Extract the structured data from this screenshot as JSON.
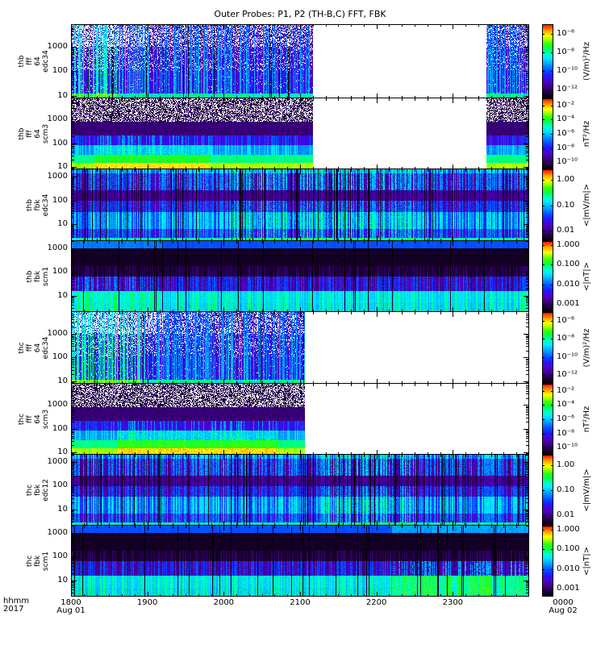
{
  "figure": {
    "title": "Outer Probes: P1, P2 (TH-B,C) FFT, FBK",
    "footer": {
      "time_format": "hhmm",
      "year": "2017"
    },
    "background": "#ffffff",
    "frame_color": "#000000"
  },
  "chart_data": {
    "type": "heatmap",
    "subtype": "multi-panel-time-frequency-spectrogram",
    "mission_note": "THEMIS outer probes P1 (TH-B) and P2 (TH-C), on-board FFT and filter-bank (FBK) spectra",
    "time_axis": {
      "start_label": "1800",
      "start_date_label": "Aug 01",
      "end_label": "0000",
      "end_date_label": "Aug 02",
      "year": "2017",
      "hour_tick_labels": [
        "1800",
        "1900",
        "2000",
        "2100",
        "2200",
        "2300",
        "0000"
      ],
      "minor_ticks_per_hour": 6
    },
    "colormap_stops": [
      [
        0.0,
        "#000000"
      ],
      [
        0.06,
        "#1b0033"
      ],
      [
        0.14,
        "#3d0085"
      ],
      [
        0.22,
        "#5000c8"
      ],
      [
        0.3,
        "#2414ff"
      ],
      [
        0.38,
        "#0055ff"
      ],
      [
        0.46,
        "#00a0ff"
      ],
      [
        0.54,
        "#00e6ff"
      ],
      [
        0.6,
        "#00ffcc"
      ],
      [
        0.67,
        "#00ff55"
      ],
      [
        0.74,
        "#33ff00"
      ],
      [
        0.8,
        "#aaff00"
      ],
      [
        0.85,
        "#ffff00"
      ],
      [
        0.91,
        "#ffaa00"
      ],
      [
        0.96,
        "#ff5500"
      ],
      [
        1.0,
        "#ff0000"
      ]
    ],
    "no_data_color": "#ffffff",
    "panels": [
      {
        "id": "thb-fff-64-edc34",
        "label_lines": [
          "thb",
          "fff",
          "64",
          "edc34"
        ],
        "y_axis": {
          "log": true,
          "min": 8,
          "max": 8000,
          "tick_labels": [
            "1000",
            "100",
            "10"
          ],
          "tick_values": [
            1000,
            100,
            10
          ]
        },
        "colorbar": {
          "unit": "(V/m)²/Hz",
          "log_range": [
            -5,
            -13
          ],
          "tick_labels": [
            "10⁻⁶",
            "10⁻⁸",
            "10⁻¹⁰",
            "10⁻¹²"
          ],
          "tick_log_values": [
            -6,
            -8,
            -10,
            -12
          ]
        },
        "coverage": [
          [
            0.0,
            0.527
          ],
          [
            0.906,
            1.0
          ]
        ],
        "texture": {
          "seed": 11,
          "streak_prob": 0.42,
          "gap_prob": 0.03,
          "bands": [
            [
              0.0,
              0.3,
              0.03,
              0.46,
              "streak",
              0.55
            ],
            [
              0.3,
              0.62,
              0.07,
              0.5,
              "streak",
              0.22
            ],
            [
              0.62,
              0.94,
              0.12,
              0.52,
              "streak",
              0.04
            ],
            [
              0.94,
              1.0,
              0.45,
              0.7,
              "streak",
              0.0
            ]
          ],
          "white_zones": [
            [
              0.0,
              0.17,
              1.5
            ]
          ],
          "hot_zones": [
            [
              0.0,
              0.1,
              0.15
            ]
          ]
        }
      },
      {
        "id": "thb-fff-64-scm3",
        "label_lines": [
          "thb",
          "fff",
          "64",
          "scm3"
        ],
        "y_axis": {
          "log": true,
          "min": 8,
          "max": 8000,
          "tick_labels": [
            "1000",
            "100",
            "10"
          ],
          "tick_values": [
            1000,
            100,
            10
          ]
        },
        "colorbar": {
          "unit": "nT²/Hz",
          "log_range": [
            -1,
            -11
          ],
          "tick_labels": [
            "10⁻²",
            "10⁻⁴",
            "10⁻⁶",
            "10⁻⁸",
            "10⁻¹⁰"
          ],
          "tick_log_values": [
            -2,
            -4,
            -6,
            -8,
            -10
          ]
        },
        "coverage": [
          [
            0.0,
            0.527
          ],
          [
            0.906,
            1.0
          ]
        ],
        "texture": {
          "seed": 22,
          "streak_prob": 0.35,
          "gap_prob": 0.0,
          "bands": [
            [
              0.0,
              0.33,
              0.01,
              0.15,
              "speckle",
              0.4
            ],
            [
              0.33,
              0.52,
              0.06,
              0.16,
              "noise",
              0.0
            ],
            [
              0.52,
              0.66,
              0.18,
              0.4,
              "streak",
              0.0
            ],
            [
              0.66,
              0.79,
              0.38,
              0.56,
              "streak",
              0.0
            ],
            [
              0.79,
              0.91,
              0.55,
              0.68,
              "solid",
              0.0
            ],
            [
              0.91,
              1.0,
              0.7,
              0.84,
              "solid",
              0.0
            ]
          ],
          "white_zones": [],
          "hot_zones": [
            [
              0.05,
              0.3,
              0.08
            ]
          ]
        }
      },
      {
        "id": "thb-fbk-edc34",
        "label_lines": [
          "thb",
          "fbk",
          "edc34"
        ],
        "y_axis": {
          "log": true,
          "min": 2,
          "max": 2048,
          "tick_labels": [
            "1000",
            "100",
            "10"
          ],
          "tick_values": [
            1000,
            100,
            10
          ]
        },
        "colorbar": {
          "unit": "<|mV/m|>",
          "log_range": [
            0.4,
            -2.4
          ],
          "tick_labels": [
            "1.00",
            "0.10",
            "0.01"
          ],
          "tick_log_values": [
            0,
            -1,
            -2
          ]
        },
        "coverage": [
          [
            0.0,
            1.0
          ]
        ],
        "texture": {
          "seed": 33,
          "streak_prob": 0.5,
          "gap_prob": 0.07,
          "bands": [
            [
              0.0,
              0.06,
              0.25,
              0.58,
              "streak",
              0.0
            ],
            [
              0.06,
              0.29,
              0.02,
              0.48,
              "streak",
              0.0
            ],
            [
              0.29,
              0.44,
              0.05,
              0.2,
              "streak",
              0.0
            ],
            [
              0.44,
              0.59,
              0.06,
              0.42,
              "streak",
              0.0
            ],
            [
              0.59,
              0.83,
              0.25,
              0.58,
              "streak",
              0.0
            ],
            [
              0.83,
              0.96,
              0.12,
              0.46,
              "streak",
              0.0
            ],
            [
              0.96,
              1.0,
              0.4,
              0.68,
              "noise",
              0.0
            ]
          ],
          "white_zones": [],
          "hot_zones": [
            [
              0.35,
              0.75,
              0.08
            ]
          ]
        }
      },
      {
        "id": "thb-fbk-scm1",
        "label_lines": [
          "thb",
          "fbk",
          "scm1"
        ],
        "y_axis": {
          "log": true,
          "min": 2,
          "max": 2048,
          "tick_labels": [
            "1000",
            "100",
            "10"
          ],
          "tick_values": [
            1000,
            100,
            10
          ]
        },
        "colorbar": {
          "unit": "<|nT|>",
          "log_range": [
            0.2,
            -3.4
          ],
          "tick_labels": [
            "1.000",
            "0.100",
            "0.010",
            "0.001"
          ],
          "tick_log_values": [
            0,
            -1,
            -2,
            -3
          ]
        },
        "coverage": [
          [
            0.0,
            1.0
          ]
        ],
        "texture": {
          "seed": 44,
          "streak_prob": 0.4,
          "gap_prob": 0.04,
          "bands": [
            [
              0.0,
              0.1,
              0.3,
              0.4,
              "solid",
              0.0
            ],
            [
              0.1,
              0.35,
              0.01,
              0.06,
              "noise",
              0.0
            ],
            [
              0.35,
              0.5,
              0.01,
              0.12,
              "streak",
              0.0
            ],
            [
              0.5,
              0.7,
              0.06,
              0.4,
              "streak",
              0.0
            ],
            [
              0.7,
              0.87,
              0.45,
              0.64,
              "streak",
              0.0
            ],
            [
              0.87,
              1.0,
              0.42,
              0.66,
              "streak",
              0.0
            ]
          ],
          "white_zones": [],
          "hot_zones": [
            [
              0.0,
              0.2,
              0.06
            ]
          ]
        }
      },
      {
        "id": "thc-fff-64-edc34",
        "label_lines": [
          "thc",
          "fff",
          "64",
          "edc34"
        ],
        "y_axis": {
          "log": true,
          "min": 8,
          "max": 8000,
          "tick_labels": [
            "1000",
            "100",
            "10"
          ],
          "tick_values": [
            1000,
            100,
            10
          ]
        },
        "colorbar": {
          "unit": "(V/m)²/Hz",
          "log_range": [
            -5,
            -13
          ],
          "tick_labels": [
            "10⁻⁶",
            "10⁻⁸",
            "10⁻¹⁰",
            "10⁻¹²"
          ],
          "tick_log_values": [
            -6,
            -8,
            -10,
            -12
          ]
        },
        "coverage": [
          [
            0.0,
            0.51
          ]
        ],
        "texture": {
          "seed": 55,
          "streak_prob": 0.42,
          "gap_prob": 0.03,
          "bands": [
            [
              0.0,
              0.3,
              0.03,
              0.46,
              "streak",
              0.55
            ],
            [
              0.3,
              0.62,
              0.07,
              0.5,
              "streak",
              0.22
            ],
            [
              0.62,
              0.94,
              0.12,
              0.52,
              "streak",
              0.04
            ],
            [
              0.94,
              1.0,
              0.45,
              0.7,
              "streak",
              0.0
            ]
          ],
          "white_zones": [
            [
              0.0,
              0.2,
              1.5
            ]
          ],
          "hot_zones": [
            [
              0.0,
              0.15,
              0.18
            ]
          ]
        }
      },
      {
        "id": "thc-fff-64-scm3",
        "label_lines": [
          "thc",
          "fff",
          "64",
          "scm3"
        ],
        "y_axis": {
          "log": true,
          "min": 8,
          "max": 8000,
          "tick_labels": [
            "1000",
            "100",
            "10"
          ],
          "tick_values": [
            1000,
            100,
            10
          ]
        },
        "colorbar": {
          "unit": "nT²/Hz",
          "log_range": [
            -1,
            -11
          ],
          "tick_labels": [
            "10⁻²",
            "10⁻⁴",
            "10⁻⁶",
            "10⁻⁸",
            "10⁻¹⁰"
          ],
          "tick_log_values": [
            -2,
            -4,
            -6,
            -8,
            -10
          ]
        },
        "coverage": [
          [
            0.0,
            0.51
          ]
        ],
        "texture": {
          "seed": 66,
          "streak_prob": 0.35,
          "gap_prob": 0.0,
          "bands": [
            [
              0.0,
              0.33,
              0.01,
              0.15,
              "speckle",
              0.4
            ],
            [
              0.33,
              0.52,
              0.06,
              0.16,
              "noise",
              0.0
            ],
            [
              0.52,
              0.66,
              0.18,
              0.4,
              "streak",
              0.0
            ],
            [
              0.66,
              0.79,
              0.38,
              0.56,
              "streak",
              0.0
            ],
            [
              0.79,
              0.91,
              0.55,
              0.68,
              "solid",
              0.0
            ],
            [
              0.91,
              1.0,
              0.7,
              0.84,
              "solid",
              0.0
            ]
          ],
          "white_zones": [],
          "hot_zones": [
            [
              0.1,
              0.45,
              0.1
            ]
          ]
        }
      },
      {
        "id": "thc-fbk-edc12",
        "label_lines": [
          "thc",
          "fbk",
          "edc12"
        ],
        "y_axis": {
          "log": true,
          "min": 2,
          "max": 2048,
          "tick_labels": [
            "1000",
            "100",
            "10"
          ],
          "tick_values": [
            1000,
            100,
            10
          ]
        },
        "colorbar": {
          "unit": "<|mV/m|>",
          "log_range": [
            0.4,
            -2.4
          ],
          "tick_labels": [
            "1.00",
            "0.10",
            "0.01"
          ],
          "tick_log_values": [
            0,
            -1,
            -2
          ]
        },
        "coverage": [
          [
            0.0,
            1.0
          ]
        ],
        "texture": {
          "seed": 77,
          "streak_prob": 0.5,
          "gap_prob": 0.08,
          "bands": [
            [
              0.0,
              0.06,
              0.25,
              0.58,
              "streak",
              0.0
            ],
            [
              0.06,
              0.29,
              0.02,
              0.48,
              "streak",
              0.0
            ],
            [
              0.29,
              0.44,
              0.05,
              0.2,
              "streak",
              0.0
            ],
            [
              0.44,
              0.59,
              0.06,
              0.42,
              "streak",
              0.0
            ],
            [
              0.59,
              0.83,
              0.25,
              0.58,
              "streak",
              0.0
            ],
            [
              0.83,
              0.96,
              0.12,
              0.46,
              "streak",
              0.0
            ],
            [
              0.96,
              1.0,
              0.4,
              0.68,
              "noise",
              0.0
            ]
          ],
          "white_zones": [],
          "hot_zones": [
            [
              0.55,
              0.75,
              0.08
            ]
          ]
        }
      },
      {
        "id": "thc-fbk-scm1",
        "label_lines": [
          "thc",
          "fbk",
          "scm1"
        ],
        "y_axis": {
          "log": true,
          "min": 2,
          "max": 2048,
          "tick_labels": [
            "1000",
            "100",
            "10"
          ],
          "tick_values": [
            1000,
            100,
            10
          ]
        },
        "colorbar": {
          "unit": "<|nT|>",
          "log_range": [
            0.2,
            -3.4
          ],
          "tick_labels": [
            "1.000",
            "0.100",
            "0.010",
            "0.001"
          ],
          "tick_log_values": [
            0,
            -1,
            -2,
            -3
          ]
        },
        "coverage": [
          [
            0.0,
            1.0
          ]
        ],
        "texture": {
          "seed": 88,
          "streak_prob": 0.4,
          "gap_prob": 0.04,
          "bands": [
            [
              0.0,
              0.1,
              0.3,
              0.4,
              "solid",
              0.0
            ],
            [
              0.1,
              0.35,
              0.01,
              0.06,
              "noise",
              0.0
            ],
            [
              0.35,
              0.5,
              0.01,
              0.12,
              "streak",
              0.0
            ],
            [
              0.5,
              0.7,
              0.06,
              0.4,
              "streak",
              0.0
            ],
            [
              0.7,
              0.87,
              0.45,
              0.64,
              "streak",
              0.0
            ],
            [
              0.87,
              1.0,
              0.42,
              0.66,
              "streak",
              0.0
            ]
          ],
          "white_zones": [],
          "hot_zones": [
            [
              0.7,
              1.0,
              0.12
            ]
          ]
        }
      }
    ]
  }
}
